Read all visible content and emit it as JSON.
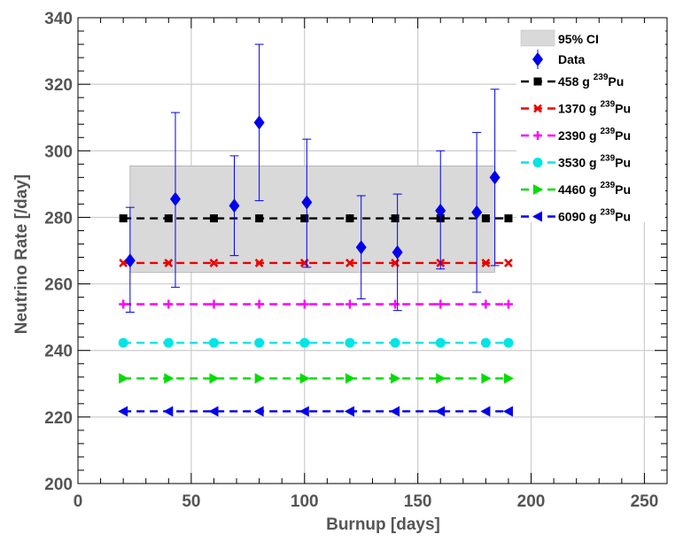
{
  "chart_data": {
    "type": "scatter",
    "xlabel": "Burnup [days]",
    "ylabel": "Neutrino Rate [/day]",
    "xlim": [
      0,
      260
    ],
    "ylim": [
      200,
      340
    ],
    "x_ticks": [
      0,
      50,
      100,
      150,
      200,
      250
    ],
    "y_ticks": [
      200,
      220,
      240,
      260,
      280,
      300,
      320,
      340
    ],
    "x_tick_labels": [
      "0",
      "50",
      "100",
      "150",
      "200",
      "250"
    ],
    "y_tick_labels": [
      "200",
      "220",
      "240",
      "260",
      "280",
      "300",
      "320",
      "340"
    ],
    "grid": true,
    "legend_position": "top-right",
    "confidence_band": {
      "name": "95% CI",
      "x_range": [
        23,
        184
      ],
      "y_range": [
        263.5,
        295.5
      ],
      "color": "#d9d9d9"
    },
    "data": {
      "name": "Data",
      "color": "#0000ee",
      "points": [
        {
          "x": 23,
          "y": 267,
          "err_low": 251.5,
          "err_high": 283
        },
        {
          "x": 43,
          "y": 285.5,
          "err_low": 259,
          "err_high": 311.5
        },
        {
          "x": 69,
          "y": 283.5,
          "err_low": 268.5,
          "err_high": 298.5
        },
        {
          "x": 80,
          "y": 308.5,
          "err_low": 285,
          "err_high": 332
        },
        {
          "x": 101,
          "y": 284.5,
          "err_low": 265,
          "err_high": 303.5
        },
        {
          "x": 125,
          "y": 271,
          "err_low": 255.5,
          "err_high": 286.5
        },
        {
          "x": 141,
          "y": 269.5,
          "err_low": 252,
          "err_high": 287
        },
        {
          "x": 160,
          "y": 282,
          "err_low": 264.5,
          "err_high": 300
        },
        {
          "x": 176,
          "y": 281.5,
          "err_low": 257.5,
          "err_high": 305.5
        },
        {
          "x": 184,
          "y": 292,
          "err_low": 265.5,
          "err_high": 318.5
        }
      ]
    },
    "model_x": [
      20,
      40,
      60,
      80,
      100,
      120,
      140,
      160,
      180,
      190
    ],
    "series": [
      {
        "name_prefix": "458 g ",
        "name_sup": "239",
        "name_suffix": "Pu",
        "y": 279.7,
        "color": "#000000",
        "marker": "square"
      },
      {
        "name_prefix": "1370 g ",
        "name_sup": "239",
        "name_suffix": "Pu",
        "y": 266.3,
        "color": "#ee0000",
        "marker": "cross"
      },
      {
        "name_prefix": "2390 g ",
        "name_sup": "239",
        "name_suffix": "Pu",
        "y": 253.9,
        "color": "#ff00ff",
        "marker": "plus"
      },
      {
        "name_prefix": "3530 g ",
        "name_sup": "239",
        "name_suffix": "Pu",
        "y": 242.3,
        "color": "#00e5e5",
        "marker": "circle"
      },
      {
        "name_prefix": "4460 g ",
        "name_sup": "239",
        "name_suffix": "Pu",
        "y": 231.6,
        "color": "#00dd00",
        "marker": "triangle-right"
      },
      {
        "name_prefix": "6090 g ",
        "name_sup": "239",
        "name_suffix": "Pu",
        "y": 221.7,
        "color": "#0000ee",
        "marker": "triangle-left"
      }
    ]
  }
}
